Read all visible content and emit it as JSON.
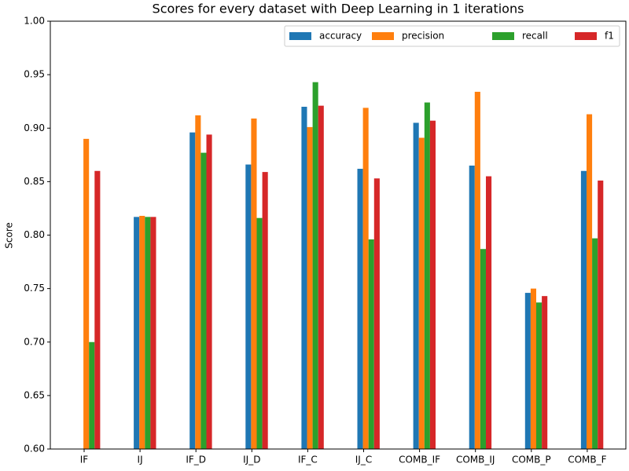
{
  "chart_data": {
    "type": "bar",
    "title": "Scores for every dataset with Deep Learning in 1 iterations",
    "y_label": "Score",
    "categories": [
      "IF",
      "IJ",
      "IF_D",
      "IJ_D",
      "IF_C",
      "IJ_C",
      "COMB_IF",
      "COMB_IJ",
      "COMB_P",
      "COMB_F"
    ],
    "series": [
      {
        "name": "accuracy",
        "color": "#1f77b4",
        "values": [
          null,
          0.817,
          0.896,
          0.866,
          0.92,
          0.862,
          0.905,
          0.865,
          0.746,
          0.86
        ]
      },
      {
        "name": "precision",
        "color": "#ff7f0e",
        "values": [
          0.89,
          0.818,
          0.912,
          0.909,
          0.901,
          0.919,
          0.891,
          0.934,
          0.75,
          0.913
        ]
      },
      {
        "name": "recall",
        "color": "#2ca02c",
        "values": [
          0.7,
          0.817,
          0.877,
          0.816,
          0.943,
          0.796,
          0.924,
          0.787,
          0.737,
          0.797
        ]
      },
      {
        "name": "f1",
        "color": "#d62728",
        "values": [
          0.86,
          0.817,
          0.894,
          0.859,
          0.921,
          0.853,
          0.907,
          0.855,
          0.743,
          0.851
        ]
      }
    ],
    "ylim": [
      0.6,
      1.0
    ],
    "yticks": [
      {
        "value": 0.6,
        "label": "0.60"
      },
      0.65,
      {
        "value": 0.7,
        "label": "0.70"
      },
      0.75,
      {
        "value": 0.8,
        "label": "0.80"
      },
      0.85,
      {
        "value": 0.9,
        "label": "0.90"
      },
      0.95,
      {
        "value": 1.0,
        "label": "1.00"
      }
    ],
    "legend": "upper right",
    "grid": false
  }
}
